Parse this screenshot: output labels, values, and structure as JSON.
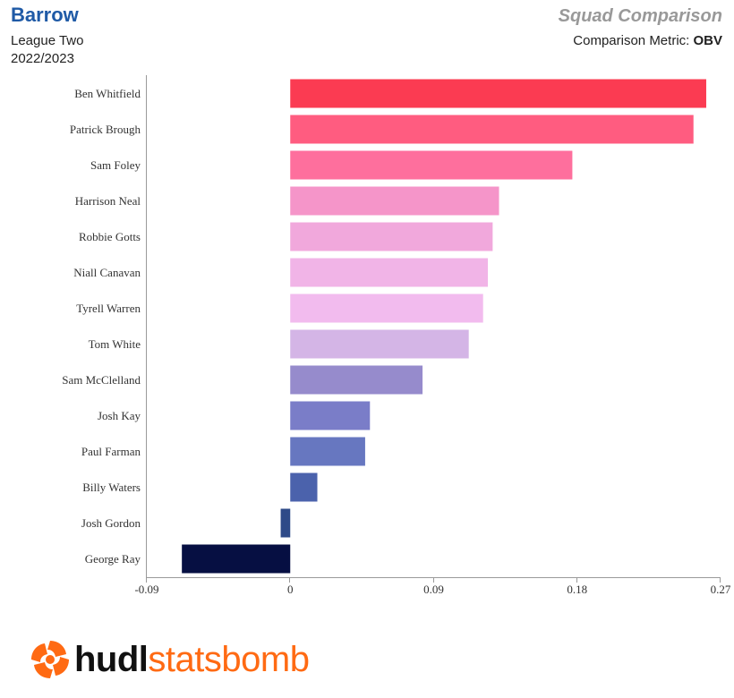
{
  "header": {
    "team": "Barrow",
    "league": "League Two",
    "season": "2022/2023",
    "report_title": "Squad Comparison",
    "metric_label": "Comparison Metric: ",
    "metric_value": "OBV"
  },
  "logo": {
    "icon": "statsbomb-pinwheel-icon",
    "brand_part1": "hudl",
    "brand_part2": "statsbomb",
    "brand_color": "#ff6a13"
  },
  "chart_data": {
    "type": "bar",
    "orientation": "horizontal",
    "categories": [
      "Ben Whitfield",
      "Patrick Brough",
      "Sam Foley",
      "Harrison Neal",
      "Robbie Gotts",
      "Niall Canavan",
      "Tyrell Warren",
      "Tom White",
      "Sam McClelland",
      "Josh Kay",
      "Paul Farman",
      "Billy Waters",
      "Josh Gordon",
      "George Ray"
    ],
    "values": [
      0.261,
      0.253,
      0.177,
      0.131,
      0.127,
      0.124,
      0.121,
      0.112,
      0.083,
      0.05,
      0.047,
      0.017,
      -0.006,
      -0.068
    ],
    "colors": [
      "#fb3b52",
      "#ff5c80",
      "#fe6f9d",
      "#f595c9",
      "#f1a8dc",
      "#f1b4e7",
      "#f2bbee",
      "#d4b5e6",
      "#968bcc",
      "#7a7dc8",
      "#6777c0",
      "#4b62ac",
      "#2e4a88",
      "#060f42"
    ],
    "xlim": [
      -0.09,
      0.27
    ],
    "xticks": [
      "-0.09",
      "0",
      "0.09",
      "0.18",
      "0.27"
    ],
    "xtick_values": [
      -0.09,
      0,
      0.09,
      0.18,
      0.27
    ],
    "title": "",
    "xlabel": "",
    "ylabel": ""
  }
}
